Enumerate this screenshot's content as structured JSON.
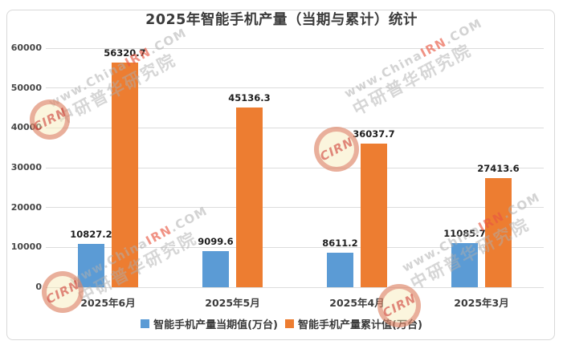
{
  "title": "2025年智能手机产量（当期与累计）统计",
  "watermark": {
    "logo_text": "CIRN",
    "url_prefix": "www.China",
    "url_highlight": "IRN",
    "url_suffix": ".COM",
    "org_name": "中研普华研究院"
  },
  "chart_data": {
    "type": "bar",
    "title": "2025年智能手机产量（当期与累计）统计",
    "categories": [
      "2025年6月",
      "2025年5月",
      "2025年4月",
      "2025年3月"
    ],
    "series": [
      {
        "name": "智能手机产量当期值(万台)",
        "color": "#5B9BD5",
        "values": [
          10827.2,
          9099.6,
          8611.2,
          11085.7
        ]
      },
      {
        "name": "智能手机产量累计值(万台)",
        "color": "#ED7D31",
        "values": [
          56320.7,
          45136.3,
          36037.7,
          27413.6
        ]
      }
    ],
    "ylabel": "",
    "xlabel": "",
    "ylim": [
      0,
      60000
    ],
    "ytick_step": 10000,
    "grid": true,
    "value_labels": true,
    "legend_position": "bottom"
  }
}
